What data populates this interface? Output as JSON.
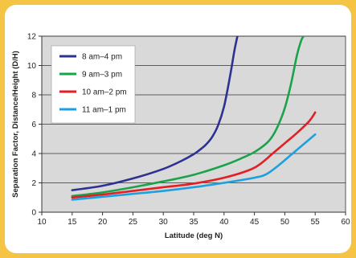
{
  "chart_data": {
    "type": "line",
    "xlabel": "Latitude (deg N)",
    "ylabel": "Separation Factor, Distance/Height (D/H)",
    "xlim": [
      10,
      60
    ],
    "ylim": [
      0,
      12
    ],
    "x_ticks": [
      10,
      15,
      20,
      25,
      30,
      35,
      40,
      45,
      50,
      55,
      60
    ],
    "y_ticks": [
      0,
      2,
      4,
      6,
      8,
      10,
      12
    ],
    "grid": "horizontal",
    "legend_position": "top-left",
    "background": "#d9d9d9",
    "series": [
      {
        "name": "8 am–4 pm",
        "color": "#2e3192",
        "x": [
          15,
          20,
          25,
          30,
          33,
          35,
          36,
          37,
          38,
          39,
          40,
          41,
          41.7,
          42.2
        ],
        "y": [
          1.5,
          1.8,
          2.3,
          2.95,
          3.5,
          3.95,
          4.25,
          4.6,
          5.1,
          5.9,
          7.2,
          9.3,
          11.0,
          12.0
        ]
      },
      {
        "name": "9 am–3 pm",
        "color": "#1aa34a",
        "x": [
          15,
          20,
          25,
          30,
          35,
          40,
          43,
          45,
          47,
          48,
          49,
          50,
          51,
          52,
          52.7,
          53.1
        ],
        "y": [
          1.1,
          1.35,
          1.7,
          2.1,
          2.55,
          3.2,
          3.7,
          4.1,
          4.7,
          5.2,
          6.0,
          7.1,
          8.7,
          10.7,
          11.7,
          12.0
        ]
      },
      {
        "name": "10 am–2 pm",
        "color": "#e31e24",
        "x": [
          15,
          20,
          25,
          30,
          35,
          40,
          44,
          46,
          48,
          50,
          52,
          54,
          55
        ],
        "y": [
          1.0,
          1.2,
          1.45,
          1.7,
          1.95,
          2.35,
          2.85,
          3.3,
          4.0,
          4.7,
          5.4,
          6.2,
          6.8
        ]
      },
      {
        "name": "11 am–1 pm",
        "color": "#1ea0e0",
        "x": [
          15,
          20,
          25,
          30,
          35,
          40,
          45,
          47,
          49,
          51,
          53,
          55
        ],
        "y": [
          0.85,
          1.05,
          1.25,
          1.45,
          1.7,
          2.0,
          2.35,
          2.6,
          3.2,
          3.9,
          4.6,
          5.3
        ]
      }
    ]
  }
}
